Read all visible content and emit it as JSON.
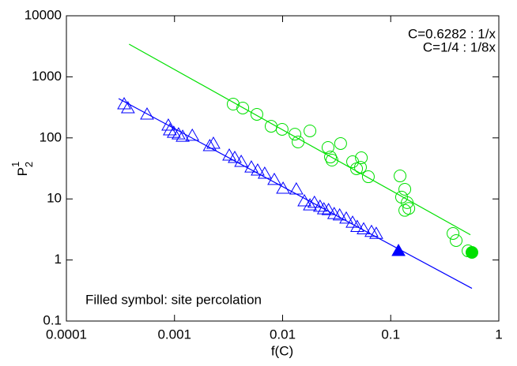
{
  "chart_data": {
    "type": "scatter",
    "xlabel": "f(C)",
    "ylabel": {
      "base": "P",
      "sup": "1",
      "sub": "2"
    },
    "annotation": "Filled symbol: site percolation",
    "xscale": "log",
    "yscale": "log",
    "xlim": [
      0.0001,
      1
    ],
    "ylim": [
      0.1,
      10000
    ],
    "xticks": [
      0.0001,
      0.001,
      0.01,
      0.1,
      1
    ],
    "yticks": [
      0.1,
      1,
      10,
      100,
      1000,
      10000
    ],
    "legend": "upper right",
    "series": [
      {
        "name": "C=0.6282 : 1/x",
        "color": "#00e000",
        "mode": "line",
        "x": [
          0.00038,
          0.546
        ],
        "values": [
          3430,
          2.59
        ]
      },
      {
        "name": "C=1/4 : 1/8x",
        "color": "#0000ff",
        "mode": "line",
        "x": [
          0.000304,
          0.564
        ],
        "values": [
          440,
          0.343
        ]
      },
      {
        "color": "#00e000",
        "mode": "marker",
        "marker": "circle",
        "filled": false,
        "x": [
          0.00349,
          0.00428,
          0.00578,
          0.00783,
          0.0099,
          0.013,
          0.0139,
          0.0179,
          0.0263,
          0.0277,
          0.0286,
          0.0344,
          0.0444,
          0.0483,
          0.0525,
          0.0535,
          0.0621,
          0.122,
          0.126,
          0.135,
          0.142,
          0.147,
          0.135,
          0.377,
          0.403,
          0.519
        ],
        "values": [
          357,
          308,
          243,
          155,
          138,
          115,
          85.7,
          130,
          69.6,
          48.6,
          43.2,
          80.8,
          40.7,
          31.2,
          33,
          47.2,
          23.1,
          23.8,
          10.7,
          14.4,
          8.7,
          7.0,
          6.5,
          2.72,
          2.08,
          1.41
        ]
      },
      {
        "color": "#00e000",
        "mode": "marker",
        "marker": "circle",
        "filled": true,
        "x": [
          0.564
        ],
        "values": [
          1.33
        ]
      },
      {
        "color": "#0000ff",
        "mode": "marker",
        "marker": "triangle",
        "filled": false,
        "x": [
          0.000342,
          0.000371,
          0.000557,
          0.000877,
          0.000906,
          0.000985,
          0.00109,
          0.00119,
          0.00146,
          0.00212,
          0.00229,
          0.00321,
          0.00361,
          0.00414,
          0.00514,
          0.00588,
          0.00683,
          0.00838,
          0.0101,
          0.0134,
          0.0159,
          0.0179,
          0.0197,
          0.0222,
          0.0241,
          0.0266,
          0.03,
          0.0337,
          0.0388,
          0.0444,
          0.049,
          0.0562,
          0.0664,
          0.0735
        ],
        "values": [
          357,
          308,
          243,
          160,
          134,
          122,
          115,
          105,
          109,
          73.8,
          80.8,
          51.6,
          47.2,
          40.7,
          33,
          29.4,
          26.1,
          20.6,
          14.8,
          14.4,
          9.2,
          7.9,
          8.7,
          7.5,
          6.8,
          6.6,
          5.7,
          5.4,
          4.8,
          4.1,
          3.5,
          3.2,
          2.9,
          2.7
        ]
      },
      {
        "color": "#0000ff",
        "mode": "marker",
        "marker": "triangle",
        "filled": true,
        "x": [
          0.118
        ],
        "values": [
          1.41
        ]
      }
    ]
  }
}
